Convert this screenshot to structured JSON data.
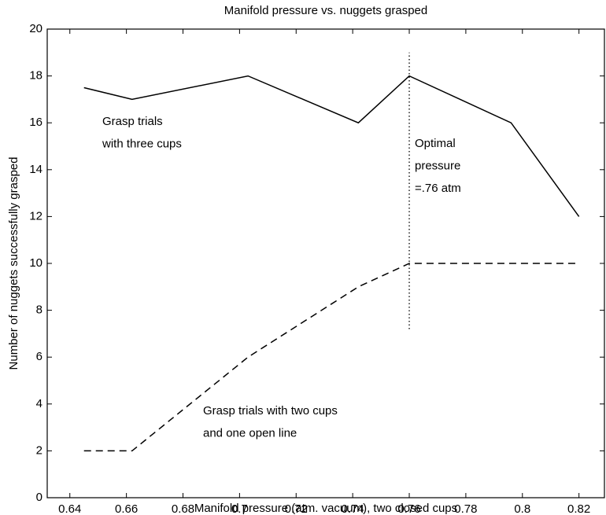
{
  "chart_data": {
    "type": "line",
    "title": "Manifold pressure vs. nuggets grasped",
    "xlabel": "Manifold pressure (atm. vacuum), two closed cups",
    "ylabel": "Number of nuggets successfully grasped",
    "series": [
      {
        "color": "#000000",
        "linestyle": "solid",
        "x": [
          0.645,
          0.662,
          0.703,
          0.742,
          0.76,
          0.796,
          0.82
        ],
        "values": [
          17.5,
          17,
          18,
          16,
          18,
          16,
          12
        ]
      },
      {
        "color": "#000000",
        "linestyle": "dashed",
        "x": [
          0.645,
          0.662,
          0.703,
          0.742,
          0.76,
          0.796,
          0.82
        ],
        "values": [
          2,
          2,
          6,
          9,
          10,
          10,
          10
        ]
      }
    ],
    "vline": {
      "x": 0.76,
      "ymin": 7.2,
      "ymax": 19,
      "linestyle": "dotted"
    },
    "annotations": [
      {
        "lines": [
          "Grasp trials",
          "with three cups"
        ]
      },
      {
        "lines": [
          "Optimal",
          "pressure",
          "=.76 atm"
        ]
      },
      {
        "lines": [
          "Grasp trials with two cups",
          "and one open line"
        ]
      }
    ],
    "xlim": [
      0.632,
      0.829
    ],
    "ylim": [
      0,
      20
    ],
    "xticks": [
      0.64,
      0.66,
      0.68,
      0.7,
      0.72,
      0.74,
      0.76,
      0.78,
      0.8,
      0.82
    ],
    "yticks": [
      0,
      2,
      4,
      6,
      8,
      10,
      12,
      14,
      16,
      18,
      20
    ],
    "grid": false
  }
}
